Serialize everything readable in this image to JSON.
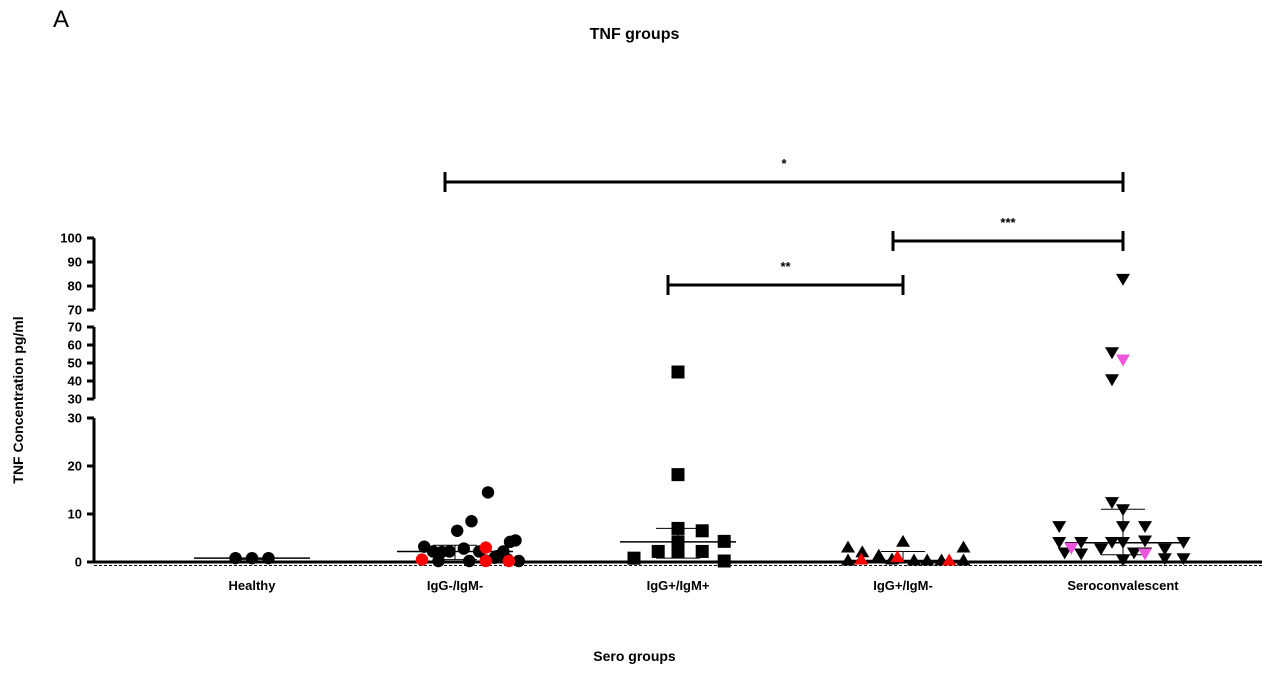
{
  "panel_letter": "A",
  "chart_data": {
    "type": "scatter",
    "title": "TNF groups",
    "xlabel": "Sero groups",
    "ylabel": "TNF Concentration pg/ml",
    "categories": [
      "Healthy",
      "IgG-/IgM-",
      "IgG+/IgM+",
      "IgG+/IgM-",
      "Seroconvalescent"
    ],
    "y_axis_segments": [
      {
        "range": [
          0,
          30
        ],
        "ticks": [
          0,
          10,
          20,
          30
        ]
      },
      {
        "range": [
          30,
          70
        ],
        "ticks": [
          30,
          40,
          50,
          60,
          70
        ]
      },
      {
        "range": [
          70,
          100
        ],
        "ticks": [
          70,
          80,
          90,
          100
        ]
      }
    ],
    "colors": {
      "default": "#000000",
      "red": "#ff0000",
      "magenta": "#ee55dd"
    },
    "groups": [
      {
        "category": "Healthy",
        "marker": "circle",
        "points": [
          {
            "x": -0.15,
            "y": 0.8
          },
          {
            "x": 0.0,
            "y": 0.8
          },
          {
            "x": 0.15,
            "y": 0.8
          }
        ],
        "median": 0.8,
        "iqr": [
          0.5,
          0.8
        ]
      },
      {
        "category": "IgG-/IgM-",
        "marker": "circle",
        "points": [
          {
            "x": -0.28,
            "y": 3.2
          },
          {
            "x": -0.2,
            "y": 2.2
          },
          {
            "x": -0.12,
            "y": 2.1
          },
          {
            "x": -0.05,
            "y": 2.2
          },
          {
            "x": 0.02,
            "y": 6.5
          },
          {
            "x": 0.08,
            "y": 2.8
          },
          {
            "x": 0.15,
            "y": 8.5
          },
          {
            "x": 0.22,
            "y": 2.2
          },
          {
            "x": 0.3,
            "y": 14.5
          },
          {
            "x": 0.38,
            "y": 1.2
          },
          {
            "x": 0.44,
            "y": 2.2
          },
          {
            "x": 0.5,
            "y": 4.2
          },
          {
            "x": 0.55,
            "y": 4.5
          },
          {
            "x": -0.15,
            "y": 0.1
          },
          {
            "x": 0.13,
            "y": 0.1
          },
          {
            "x": 0.28,
            "y": 0.3
          },
          {
            "x": 0.36,
            "y": 0.9
          },
          {
            "x": 0.48,
            "y": 0.5
          },
          {
            "x": 0.58,
            "y": 0.1
          },
          {
            "x": -0.3,
            "y": 0.5,
            "color": "red"
          },
          {
            "x": 0.28,
            "y": 3.0,
            "color": "red"
          },
          {
            "x": 0.28,
            "y": 0.05,
            "color": "red"
          },
          {
            "x": 0.49,
            "y": 0.05,
            "color": "red"
          }
        ],
        "median": 2.2,
        "iqr": [
          0.5,
          3.5
        ]
      },
      {
        "category": "IgG+/IgM+",
        "marker": "square",
        "points": [
          {
            "x": -0.4,
            "y": 0.8
          },
          {
            "x": -0.18,
            "y": 2.2
          },
          {
            "x": 0.0,
            "y": 45.0
          },
          {
            "x": 0.0,
            "y": 18.2
          },
          {
            "x": 0.0,
            "y": 7.0
          },
          {
            "x": 0.0,
            "y": 4.2
          },
          {
            "x": 0.0,
            "y": 2.2
          },
          {
            "x": 0.22,
            "y": 6.5
          },
          {
            "x": 0.22,
            "y": 2.2
          },
          {
            "x": 0.42,
            "y": 4.3
          },
          {
            "x": 0.42,
            "y": 0.1
          }
        ],
        "median": 4.2,
        "iqr": [
          0.8,
          7.0
        ]
      },
      {
        "category": "IgG+/IgM-",
        "marker": "triangle-up",
        "points": [
          {
            "x": -0.5,
            "y": 3.0
          },
          {
            "x": -0.5,
            "y": 0.3
          },
          {
            "x": -0.37,
            "y": 2.0
          },
          {
            "x": -0.22,
            "y": 1.3
          },
          {
            "x": -0.1,
            "y": 0.5
          },
          {
            "x": 0.0,
            "y": 4.2
          },
          {
            "x": 0.1,
            "y": 0.3
          },
          {
            "x": 0.22,
            "y": 0.3
          },
          {
            "x": 0.35,
            "y": 0.3
          },
          {
            "x": 0.55,
            "y": 3.0
          },
          {
            "x": 0.55,
            "y": 0.3
          },
          {
            "x": -0.38,
            "y": 0.5,
            "color": "red"
          },
          {
            "x": -0.05,
            "y": 1.0,
            "color": "red"
          },
          {
            "x": 0.42,
            "y": 0.3,
            "color": "red"
          }
        ],
        "median": 0.3,
        "iqr": [
          0.2,
          2.2
        ]
      },
      {
        "category": "Seroconvalescent",
        "marker": "triangle-down",
        "points": [
          {
            "x": -0.58,
            "y": 7.5
          },
          {
            "x": -0.58,
            "y": 4.2
          },
          {
            "x": -0.53,
            "y": 2.0
          },
          {
            "x": -0.38,
            "y": 4.2
          },
          {
            "x": -0.38,
            "y": 1.8
          },
          {
            "x": -0.2,
            "y": 2.8
          },
          {
            "x": -0.1,
            "y": 56.0
          },
          {
            "x": -0.1,
            "y": 41.0
          },
          {
            "x": -0.1,
            "y": 12.5
          },
          {
            "x": -0.1,
            "y": 4.2
          },
          {
            "x": 0.0,
            "y": 83.0
          },
          {
            "x": 0.0,
            "y": 11.0
          },
          {
            "x": 0.0,
            "y": 7.5
          },
          {
            "x": 0.0,
            "y": 4.2
          },
          {
            "x": 0.0,
            "y": 0.5
          },
          {
            "x": 0.1,
            "y": 2.0
          },
          {
            "x": 0.2,
            "y": 7.5
          },
          {
            "x": 0.2,
            "y": 4.5
          },
          {
            "x": 0.2,
            "y": 2.0
          },
          {
            "x": 0.38,
            "y": 2.8
          },
          {
            "x": 0.38,
            "y": 0.8
          },
          {
            "x": 0.55,
            "y": 4.2
          },
          {
            "x": 0.55,
            "y": 0.8
          },
          {
            "x": -0.47,
            "y": 3.0,
            "color": "magenta"
          },
          {
            "x": 0.0,
            "y": 52.0,
            "color": "magenta"
          },
          {
            "x": 0.2,
            "y": 1.8,
            "color": "magenta"
          }
        ],
        "median": 4.0,
        "iqr": [
          1.5,
          11.0
        ]
      }
    ],
    "significance": [
      {
        "from": "IgG-/IgM-",
        "to": "Seroconvalescent",
        "label": "*",
        "level": "top"
      },
      {
        "from": "IgG+/IgM-",
        "to": "Seroconvalescent",
        "label": "***",
        "level": "middle"
      },
      {
        "from": "IgG+/IgM+",
        "to": "IgG+/IgM-",
        "label": "**",
        "level": "low"
      }
    ]
  }
}
